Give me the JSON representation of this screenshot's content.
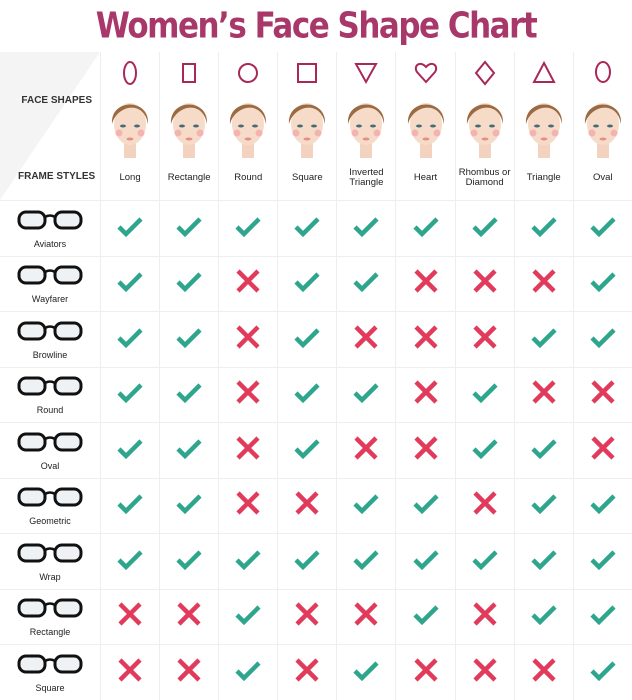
{
  "title": "Women’s Face Shape Chart",
  "header": {
    "face_shapes_label": "FACE SHAPES",
    "frame_styles_label": "FRAME STYLES"
  },
  "colors": {
    "title": "#a8386a",
    "check": "#2ea58d",
    "cross": "#e23a5a",
    "shape_outline": "#a8285a"
  },
  "face_shapes": [
    {
      "label": "Long",
      "icon": "tall-oval-icon"
    },
    {
      "label": "Rectangle",
      "icon": "rectangle-icon"
    },
    {
      "label": "Round",
      "icon": "circle-icon"
    },
    {
      "label": "Square",
      "icon": "square-icon"
    },
    {
      "label": "Inverted Triangle",
      "icon": "inverted-triangle-icon"
    },
    {
      "label": "Heart",
      "icon": "heart-icon"
    },
    {
      "label": "Rhombus or Diamond",
      "icon": "diamond-icon"
    },
    {
      "label": "Triangle",
      "icon": "triangle-icon"
    },
    {
      "label": "Oval",
      "icon": "oval-icon"
    }
  ],
  "frame_styles": [
    {
      "label": "Aviators",
      "suits": [
        true,
        true,
        true,
        true,
        true,
        true,
        true,
        true,
        true
      ]
    },
    {
      "label": "Wayfarer",
      "suits": [
        true,
        true,
        false,
        true,
        true,
        false,
        false,
        false,
        true
      ]
    },
    {
      "label": "Browline",
      "suits": [
        true,
        true,
        false,
        true,
        false,
        false,
        false,
        true,
        true
      ]
    },
    {
      "label": "Round",
      "suits": [
        true,
        true,
        false,
        true,
        true,
        false,
        true,
        false,
        false
      ]
    },
    {
      "label": "Oval",
      "suits": [
        true,
        true,
        false,
        true,
        false,
        false,
        true,
        true,
        false
      ]
    },
    {
      "label": "Geometric",
      "suits": [
        true,
        true,
        false,
        false,
        true,
        true,
        false,
        true,
        true
      ]
    },
    {
      "label": "Wrap",
      "suits": [
        true,
        true,
        true,
        true,
        true,
        true,
        true,
        true,
        true
      ]
    },
    {
      "label": "Rectangle",
      "suits": [
        false,
        false,
        true,
        false,
        false,
        true,
        false,
        true,
        true
      ]
    },
    {
      "label": "Square",
      "suits": [
        false,
        false,
        true,
        false,
        true,
        false,
        false,
        false,
        true
      ]
    }
  ]
}
